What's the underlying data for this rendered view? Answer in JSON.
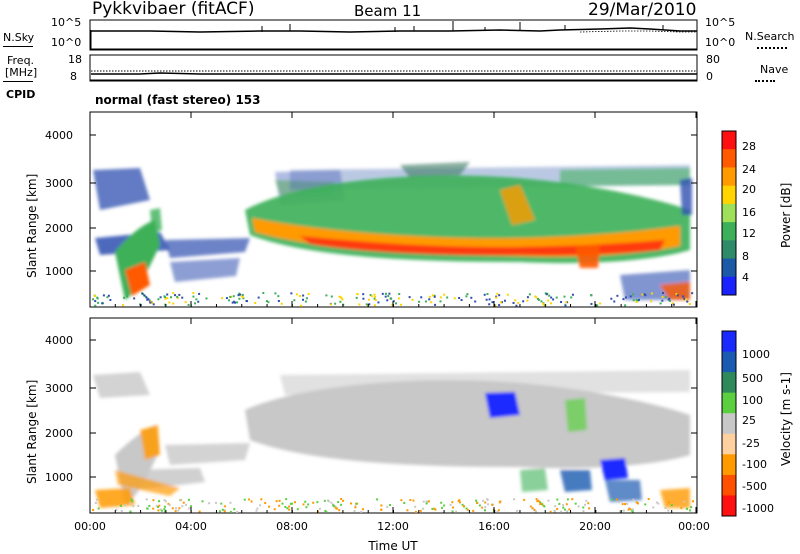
{
  "header": {
    "station": "Pykkvibaer (fitACF)",
    "beam": "Beam 11",
    "date": "29/Mar/2010"
  },
  "strips": {
    "nsky_label": "N.Sky",
    "nsky_ticks": [
      "10^5",
      "10^0"
    ],
    "nsearch_label": "N.Search",
    "nsearch_ticks": [
      "10^5",
      "10^0"
    ],
    "freq_label_1": "Freq.",
    "freq_label_2": "[MHz]",
    "freq_ticks": [
      "18",
      "8"
    ],
    "nave_label": "Nave",
    "nave_ticks": [
      "80",
      "0"
    ],
    "cpid_label": "CPID",
    "cpid_value": "normal (fast stereo) 153"
  },
  "chart_data": [
    {
      "type": "heatmap",
      "name": "power-panel",
      "ylabel": "Slant Range [km]",
      "yticks": [
        "4000",
        "3000",
        "2000",
        "1000"
      ],
      "ylim": [
        200,
        4600
      ],
      "xlim": [
        0,
        24
      ],
      "colorbar_label": "Power [dB]",
      "colorbar_ticks": [
        "28",
        "24",
        "20",
        "16",
        "12",
        "8",
        "4"
      ],
      "colorbar_colors": [
        "#ff1010",
        "#ff5a00",
        "#ff9a00",
        "#ffd400",
        "#9ee05a",
        "#3cb058",
        "#2f8a6a",
        "#1c5aa8",
        "#1a22ff"
      ]
    },
    {
      "type": "heatmap",
      "name": "velocity-panel",
      "ylabel": "Slant Range [km]",
      "yticks": [
        "4000",
        "3000",
        "2000",
        "1000"
      ],
      "ylim": [
        200,
        4600
      ],
      "xlim": [
        0,
        24
      ],
      "colorbar_label": "Velocity [m s-1]",
      "colorbar_ticks": [
        "1000",
        "500",
        "100",
        "25",
        "-25",
        "-100",
        "-500",
        "-1000"
      ],
      "colorbar_colors": [
        "#1a2aff",
        "#1a5ab0",
        "#2e8a5a",
        "#5ad040",
        "#c8c8c8",
        "#ffd0a0",
        "#ff9a00",
        "#ff5000",
        "#ff1010"
      ]
    }
  ],
  "x_axis": {
    "ticks": [
      "00:00",
      "04:00",
      "08:00",
      "12:00",
      "16:00",
      "20:00",
      "00:00"
    ],
    "label": "Time UT"
  }
}
